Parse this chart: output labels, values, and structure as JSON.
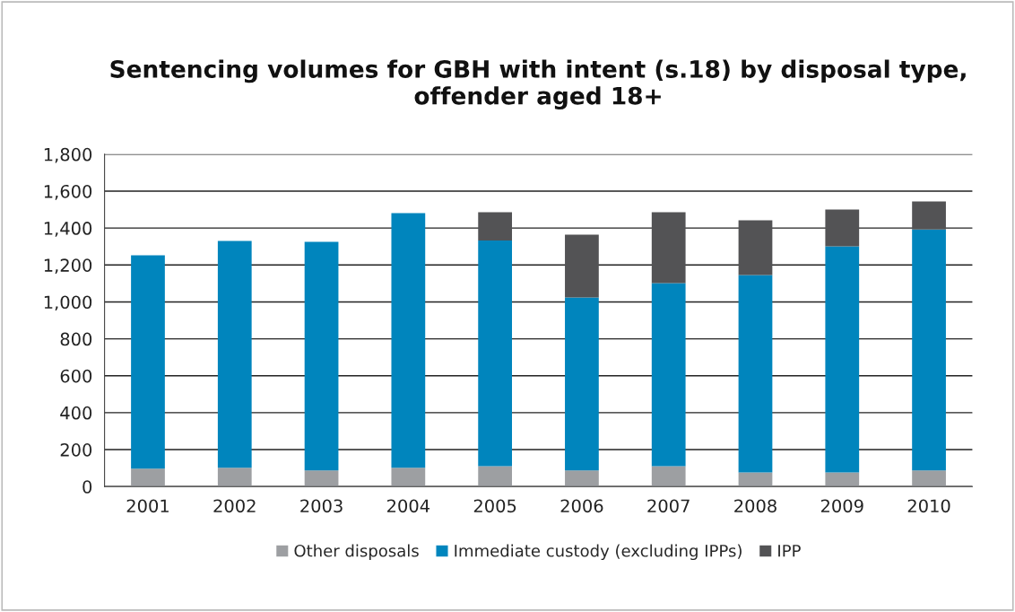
{
  "chart_data": {
    "type": "bar",
    "title": "Sentencing volumes for GBH with intent (s.18) by disposal type,\noffender aged 18+",
    "categories": [
      "2001",
      "2002",
      "2003",
      "2004",
      "2005",
      "2006",
      "2007",
      "2008",
      "2009",
      "2010"
    ],
    "stacked": true,
    "series": [
      {
        "name": "Other disposals",
        "color": "#9d9fa2",
        "values": [
          97,
          102,
          87,
          102,
          110,
          87,
          110,
          76,
          76,
          87
        ]
      },
      {
        "name": "Immediate custody (excluding IPPs)",
        "color": "#0085bd",
        "values": [
          1155,
          1228,
          1238,
          1379,
          1223,
          937,
          992,
          1069,
          1225,
          1305
        ]
      },
      {
        "name": "IPP",
        "color": "#535355",
        "values": [
          null,
          null,
          null,
          null,
          153,
          340,
          384,
          297,
          199,
          152
        ]
      }
    ],
    "ylim": [
      0,
      1800
    ],
    "yticks": [
      {
        "value": 0,
        "label": "0"
      },
      {
        "value": 200,
        "label": "200"
      },
      {
        "value": 400,
        "label": "400"
      },
      {
        "value": 600,
        "label": "600"
      },
      {
        "value": 800,
        "label": "800"
      },
      {
        "value": 1000,
        "label": "1,000"
      },
      {
        "value": 1200,
        "label": "1,200"
      },
      {
        "value": 1400,
        "label": "1,400"
      },
      {
        "value": 1600,
        "label": "1,600"
      },
      {
        "value": 1800,
        "label": "1,800"
      }
    ],
    "grid": "y",
    "legend": "bottom"
  }
}
